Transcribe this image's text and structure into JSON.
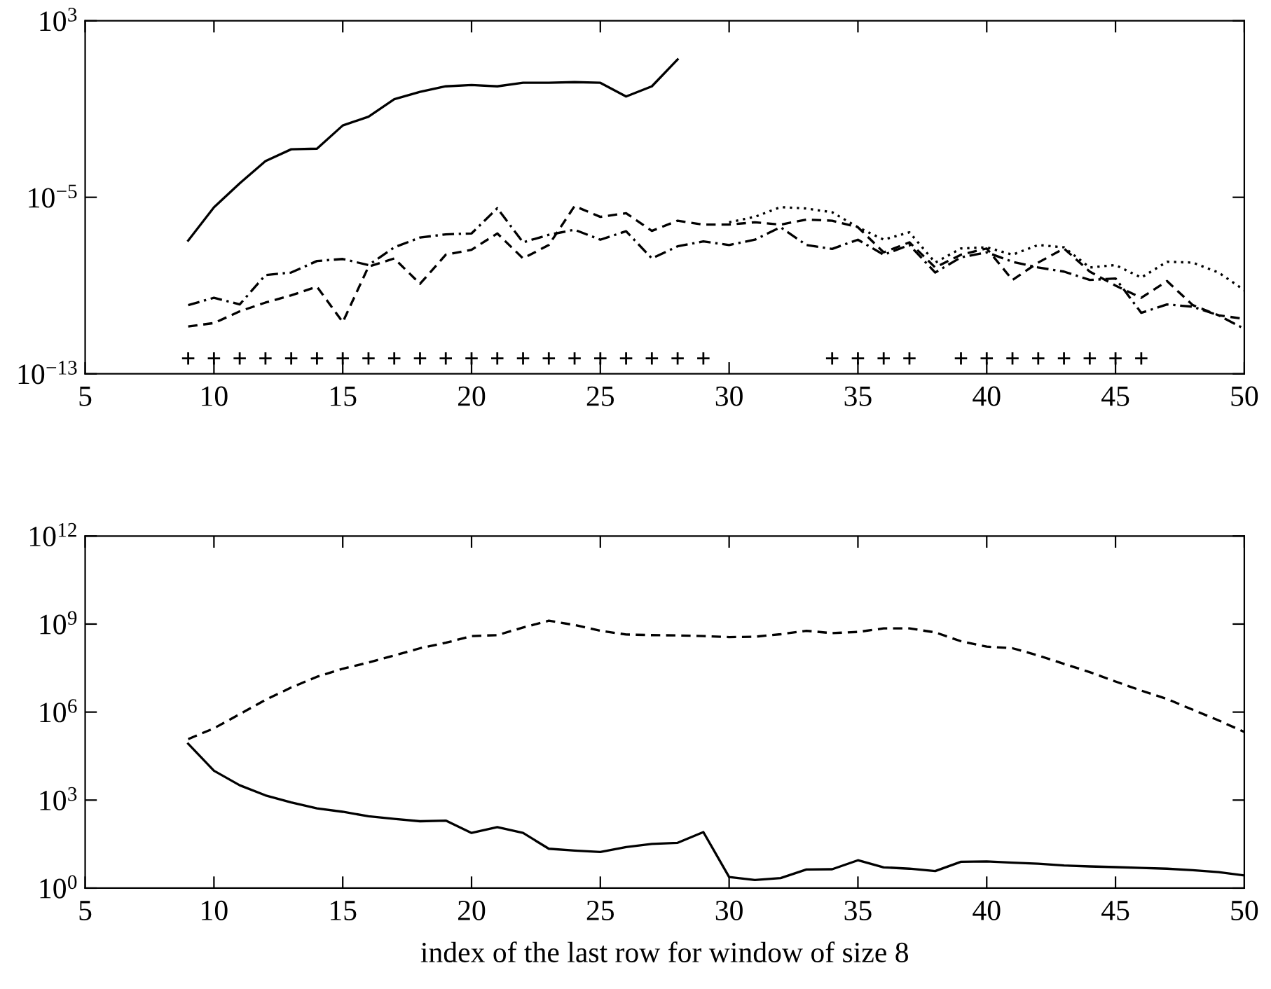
{
  "chart_data": [
    {
      "type": "line",
      "log": "y",
      "xlim": [
        5,
        50
      ],
      "xticks": [
        5,
        10,
        15,
        20,
        25,
        30,
        35,
        40,
        45,
        50
      ],
      "ylim": [
        1e-13,
        1000
      ],
      "yticks": [
        {
          "value": 1e-13,
          "label": "10$^{−13}$"
        },
        {
          "value": 1e-05,
          "label": "10$^{−5}$"
        },
        {
          "value": 1000,
          "label": "10$^{3}$"
        }
      ],
      "series": [
        {
          "color": "#000000",
          "line_style": "solid",
          "x": [
            9,
            10,
            11,
            12,
            13,
            14,
            15,
            16,
            17,
            18,
            19,
            20,
            21,
            22,
            23,
            24,
            25,
            26,
            27,
            28
          ],
          "values": [
            1.1e-07,
            3.5e-06,
            4.3e-05,
            0.00044,
            0.0015,
            0.0016,
            0.018,
            0.045,
            0.28,
            0.6,
            1.07,
            1.23,
            1.07,
            1.55,
            1.55,
            1.66,
            1.55,
            0.37,
            1.07,
            17.8
          ]
        },
        {
          "color": "#000000",
          "line_style": "dashed",
          "x": [
            9,
            10,
            11,
            12,
            13,
            14,
            15,
            16,
            17,
            18,
            19,
            20,
            21,
            22,
            23,
            24,
            25,
            26,
            27,
            28,
            29,
            30,
            31,
            32,
            33,
            34,
            35,
            36,
            37,
            38,
            39,
            40,
            41,
            42,
            43,
            44,
            45,
            46,
            47,
            48,
            49,
            50
          ],
          "values": [
            1.4e-11,
            2e-11,
            6.8e-11,
            1.7e-10,
            3.6e-10,
            8.9e-10,
            2.2e-11,
            7.2e-09,
            1.7e-08,
            1.2e-09,
            2.5e-08,
            4.2e-08,
            2.3e-07,
            1.7e-08,
            6.9e-08,
            4e-06,
            1.3e-06,
            1.9e-06,
            3e-07,
            8.7e-07,
            5.8e-07,
            5.8e-07,
            7.4e-07,
            5.8e-07,
            9.8e-07,
            8.7e-07,
            4.4e-07,
            3.2e-08,
            9.1e-08,
            6.6e-09,
            2.5e-08,
            4.8e-08,
            1.8e-09,
            1.1e-08,
            4.8e-08,
            4.3e-09,
            1e-09,
            2.8e-10,
            1.6e-09,
            1.3e-10,
            4.5e-11,
            3.1e-11
          ]
        },
        {
          "color": "#000000",
          "line_style": "dashdot",
          "x": [
            9,
            10,
            11,
            12,
            13,
            14,
            15,
            16,
            17,
            18,
            19,
            20,
            21,
            22,
            23,
            24,
            25,
            26,
            27,
            28,
            29,
            30,
            31,
            32,
            33,
            34,
            35,
            36,
            37,
            38,
            39,
            40,
            41,
            42,
            43,
            44,
            45,
            46,
            47,
            48,
            49,
            50
          ],
          "values": [
            1.3e-10,
            2.8e-10,
            1.4e-10,
            3e-09,
            3.9e-09,
            1.3e-08,
            1.6e-08,
            8.5e-09,
            5.4e-08,
            1.5e-07,
            2.1e-07,
            2.3e-07,
            3.2e-06,
            9.1e-08,
            2e-07,
            3.4e-07,
            1.2e-07,
            2.9e-07,
            1.7e-08,
            6e-08,
            1e-07,
            6.9e-08,
            1.2e-07,
            4.4e-07,
            6.9e-08,
            4.6e-08,
            1.2e-07,
            2.5e-08,
            6.9e-08,
            3.9e-09,
            1.9e-08,
            3.2e-08,
            1.2e-08,
            6.6e-09,
            4.3e-09,
            1.8e-09,
            2.1e-09,
            5.8e-11,
            1.4e-10,
            1.1e-10,
            4.5e-11,
            1.1e-11
          ]
        },
        {
          "color": "#000000",
          "line_style": "dotted",
          "x": [
            30,
            31,
            32,
            33,
            34,
            35,
            36,
            37,
            38,
            39,
            40,
            41,
            42,
            43,
            44,
            45,
            46,
            47,
            48,
            49,
            50
          ],
          "values": [
            7.4e-07,
            1.3e-06,
            3.6e-06,
            3.1e-06,
            2.1e-06,
            4.4e-07,
            1.2e-07,
            2.6e-07,
            1.1e-08,
            4.8e-08,
            5.4e-08,
            2.5e-08,
            6.9e-08,
            5.4e-08,
            6.6e-09,
            8.5e-09,
            2.3e-09,
            1.2e-08,
            1.1e-08,
            3.9e-09,
            6.2e-10
          ]
        },
        {
          "type": "scatter",
          "marker": "cross",
          "color": "#000000",
          "x": [
            9,
            10,
            11,
            12,
            13,
            14,
            15,
            16,
            17,
            18,
            19,
            20,
            21,
            22,
            23,
            24,
            25,
            26,
            27,
            28,
            29,
            34,
            35,
            36,
            37,
            39,
            40,
            41,
            42,
            43,
            44,
            45,
            46
          ],
          "values": [
            5e-13,
            5e-13,
            5e-13,
            5e-13,
            5e-13,
            5e-13,
            5e-13,
            5e-13,
            5e-13,
            5e-13,
            5e-13,
            5e-13,
            5e-13,
            5e-13,
            5e-13,
            5e-13,
            5e-13,
            5e-13,
            5e-13,
            5e-13,
            5e-13,
            5e-13,
            5e-13,
            5e-13,
            5e-13,
            5e-13,
            5e-13,
            5e-13,
            5e-13,
            5e-13,
            5e-13,
            5e-13,
            5e-13
          ]
        }
      ]
    },
    {
      "type": "line",
      "log": "y",
      "xlabel": "index of the last row for window of size 8",
      "xlim": [
        5,
        50
      ],
      "xticks": [
        5,
        10,
        15,
        20,
        25,
        30,
        35,
        40,
        45,
        50
      ],
      "ylim": [
        1,
        1000000000000.0
      ],
      "yticks": [
        {
          "value": 1,
          "label": "10$^{0}$"
        },
        {
          "value": 1000,
          "label": "10$^{3}$"
        },
        {
          "value": 1000000.0,
          "label": "10$^{6}$"
        },
        {
          "value": 1000000000.0,
          "label": "10$^{9}$"
        },
        {
          "value": 1000000000000.0,
          "label": "10$^{12}$"
        }
      ],
      "series": [
        {
          "color": "#000000",
          "line_style": "solid",
          "x": [
            9,
            10,
            11,
            12,
            13,
            14,
            15,
            16,
            17,
            18,
            19,
            20,
            21,
            22,
            23,
            24,
            25,
            26,
            27,
            28,
            29,
            30,
            31,
            32,
            33,
            34,
            35,
            36,
            37,
            38,
            39,
            40,
            41,
            42,
            43,
            44,
            45,
            46,
            47,
            48,
            49,
            50
          ],
          "values": [
            83000,
            10000,
            3200,
            1450,
            830,
            520,
            400,
            280,
            230,
            190,
            200,
            76,
            120,
            76,
            22,
            19,
            17,
            25,
            32,
            35,
            81,
            2.4,
            1.9,
            2.2,
            4.3,
            4.4,
            8.9,
            5.1,
            4.6,
            3.8,
            7.9,
            8.1,
            7.4,
            6.8,
            5.9,
            5.5,
            5.2,
            4.9,
            4.6,
            4.1,
            3.5,
            2.7
          ]
        },
        {
          "color": "#000000",
          "line_style": "dashed",
          "x": [
            9,
            10,
            11,
            12,
            13,
            14,
            15,
            16,
            17,
            18,
            19,
            20,
            21,
            22,
            23,
            24,
            25,
            26,
            27,
            28,
            29,
            30,
            31,
            32,
            33,
            34,
            35,
            36,
            37,
            38,
            39,
            40,
            41,
            42,
            43,
            44,
            45,
            46,
            47,
            48,
            49,
            50
          ],
          "values": [
            120000.0,
            280000.0,
            850000.0,
            2600000.0,
            6900000.0,
            16000000.0,
            30000000.0,
            49000000.0,
            85000000.0,
            150000000.0,
            230000000.0,
            390000000.0,
            420000000.0,
            760000000.0,
            1300000000.0,
            930000000.0,
            590000000.0,
            440000000.0,
            420000000.0,
            410000000.0,
            390000000.0,
            360000000.0,
            370000000.0,
            450000000.0,
            590000000.0,
            490000000.0,
            540000000.0,
            710000000.0,
            710000000.0,
            520000000.0,
            260000000.0,
            170000000.0,
            150000000.0,
            85000000.0,
            44000000.0,
            23000000.0,
            11000000.0,
            5400000.0,
            2800000.0,
            1200000.0,
            520000.0,
            210000.0
          ]
        }
      ]
    }
  ]
}
